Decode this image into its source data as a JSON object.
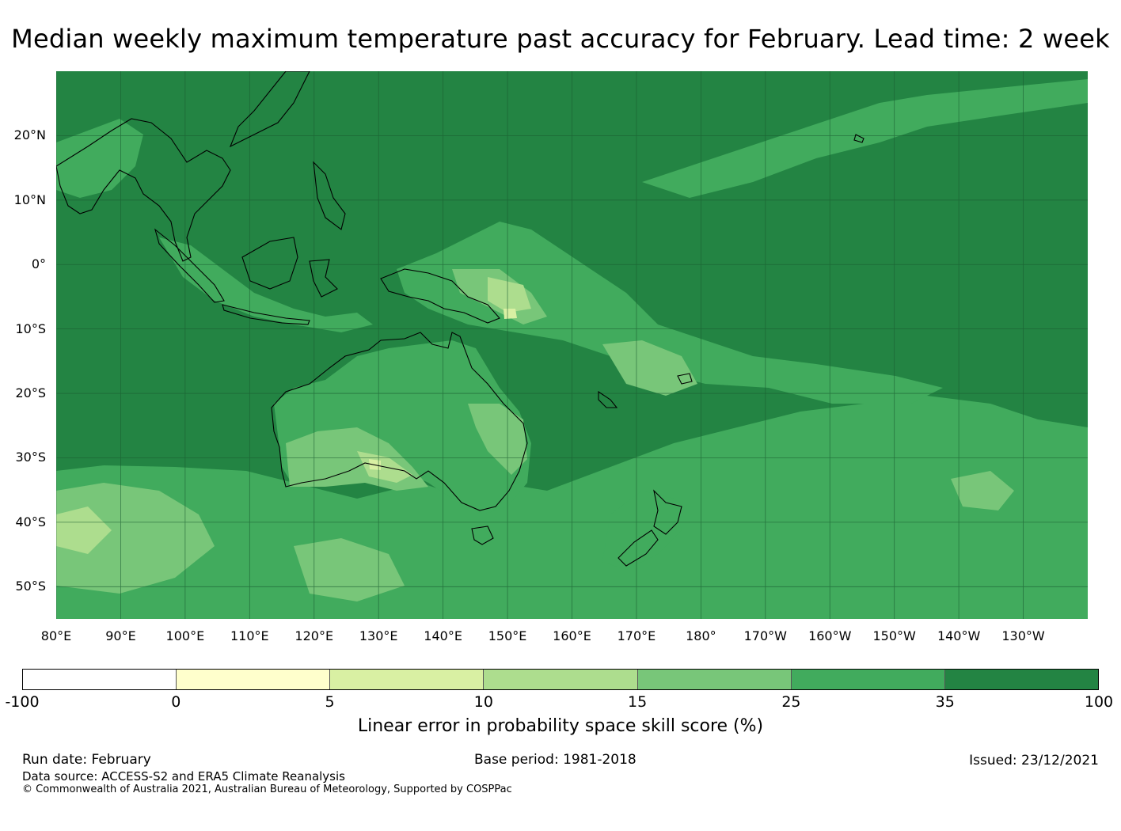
{
  "title": "Median weekly maximum temperature past accuracy for February. Lead time: 2 week",
  "map": {
    "region": "Western and South Pacific, Australia, Maritime Continent",
    "lon_range": [
      80,
      240
    ],
    "lat_range": [
      -55,
      30
    ],
    "ocean_base_category": "35 to 100",
    "lat_ticks": [
      "20°N",
      "10°N",
      "0°",
      "10°S",
      "20°S",
      "30°S",
      "40°S",
      "50°S"
    ],
    "lon_ticks": [
      "80°E",
      "90°E",
      "100°E",
      "110°E",
      "120°E",
      "130°E",
      "140°E",
      "150°E",
      "160°E",
      "170°E",
      "180°",
      "170°W",
      "160°W",
      "150°W",
      "140°W",
      "130°W"
    ],
    "lat_values": [
      20,
      10,
      0,
      -10,
      -20,
      -30,
      -40,
      -50
    ],
    "lon_values": [
      80,
      90,
      100,
      110,
      120,
      130,
      140,
      150,
      160,
      170,
      180,
      190,
      200,
      210,
      220,
      230
    ]
  },
  "colorbar": {
    "ticks": [
      "-100",
      "0",
      "5",
      "10",
      "15",
      "25",
      "35",
      "100"
    ],
    "colors": [
      "#ffffff",
      "#ffffcc",
      "#d9f0a3",
      "#addd8e",
      "#78c679",
      "#41ab5d",
      "#238443"
    ],
    "label": "Linear error in probability space skill score (%)"
  },
  "footer": {
    "run_date": "Run date: February",
    "base_period": "Base period: 1981-2018",
    "issued": "Issued: 23/12/2021",
    "data_source": "Data source: ACCESS-S2 and ERA5 Climate Reanalysis",
    "copyright": "© Commonwealth of Australia 2021, Australian Bureau of Meteorology, Supported by COSPPac"
  }
}
